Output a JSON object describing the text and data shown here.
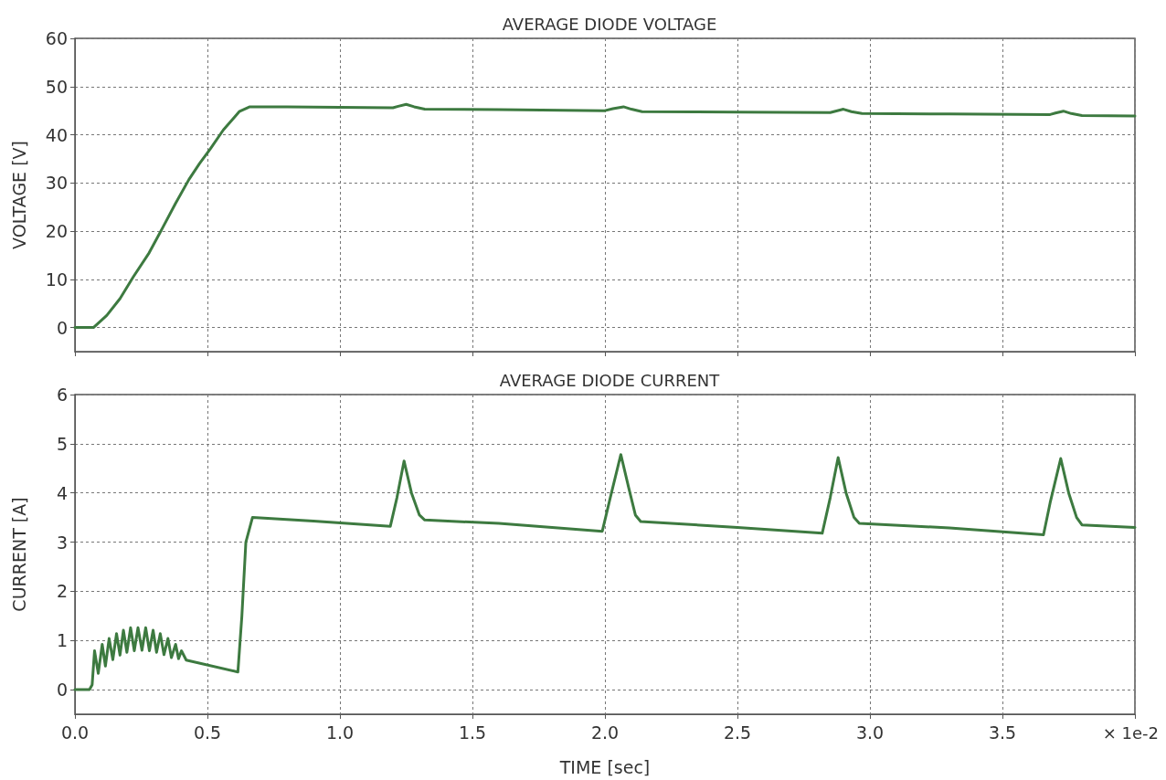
{
  "chart_data": [
    {
      "type": "line",
      "title": "AVERAGE DIODE VOLTAGE",
      "ylabel": "VOLTAGE [V]",
      "xlim": [
        0,
        4
      ],
      "xticks": [
        0,
        0.5,
        1,
        1.5,
        2,
        2.5,
        3,
        3.5,
        4
      ],
      "ylim": [
        -5,
        60
      ],
      "yticks": [
        0,
        10,
        20,
        30,
        40,
        50,
        60
      ],
      "grid": true,
      "marker": "none",
      "line_style": "solid",
      "tick_labels": "y",
      "series": [
        {
          "color": "#3d7a40",
          "x": [
            0,
            0.07,
            0.12,
            0.17,
            0.22,
            0.28,
            0.33,
            0.38,
            0.43,
            0.47,
            0.51,
            0.56,
            0.6,
            0.62,
            0.66,
            0.8,
            1.0,
            1.2,
            1.22,
            1.25,
            1.28,
            1.32,
            1.6,
            2.0,
            2.03,
            2.07,
            2.1,
            2.14,
            2.5,
            2.85,
            2.87,
            2.9,
            2.93,
            2.97,
            3.3,
            3.68,
            3.7,
            3.73,
            3.76,
            3.8,
            4.0
          ],
          "values": [
            0,
            0,
            2.5,
            6,
            10.5,
            15.5,
            20.6,
            25.8,
            30.7,
            34,
            37,
            41,
            43.5,
            44.8,
            45.8,
            45.8,
            45.7,
            45.6,
            45.9,
            46.3,
            45.8,
            45.3,
            45.2,
            45.0,
            45.4,
            45.8,
            45.3,
            44.8,
            44.7,
            44.6,
            44.9,
            45.3,
            44.8,
            44.4,
            44.3,
            44.2,
            44.5,
            44.9,
            44.4,
            44.0,
            43.9
          ]
        }
      ]
    },
    {
      "type": "line",
      "title": "AVERAGE DIODE CURRENT",
      "ylabel": "CURRENT [A]",
      "xlabel": "TIME [sec]",
      "annotations": [
        "× 1e-2"
      ],
      "xlim": [
        0,
        4
      ],
      "xticks": [
        {
          "value": 0,
          "label": "0.0"
        },
        0.5,
        {
          "value": 1,
          "label": "1.0"
        },
        1.5,
        {
          "value": 2,
          "label": "2.0"
        },
        2.5,
        {
          "value": 3,
          "label": "3.0"
        },
        3.5,
        {
          "value": 4,
          "label": null
        }
      ],
      "ylim": [
        -0.5,
        6
      ],
      "yticks": [
        0,
        1,
        2,
        3,
        4,
        5,
        6
      ],
      "grid": true,
      "marker": "none",
      "line_style": "solid",
      "series": [
        {
          "color": "#3d7a40",
          "x": [
            0,
            0.055,
            0.065,
            0.074,
            0.088,
            0.103,
            0.115,
            0.129,
            0.143,
            0.157,
            0.17,
            0.183,
            0.196,
            0.21,
            0.224,
            0.238,
            0.253,
            0.267,
            0.281,
            0.295,
            0.308,
            0.322,
            0.336,
            0.351,
            0.364,
            0.38,
            0.391,
            0.402,
            0.42,
            0.615,
            0.63,
            0.645,
            0.67,
            0.9,
            1.19,
            1.215,
            1.242,
            1.27,
            1.3,
            1.32,
            1.6,
            1.99,
            2.02,
            2.06,
            2.09,
            2.115,
            2.135,
            2.5,
            2.82,
            2.85,
            2.88,
            2.91,
            2.94,
            2.96,
            3.3,
            3.655,
            3.68,
            3.72,
            3.75,
            3.78,
            3.8,
            4.0
          ],
          "values": [
            0,
            0,
            0.1,
            0.79,
            0.33,
            0.92,
            0.48,
            1.04,
            0.61,
            1.14,
            0.7,
            1.21,
            0.76,
            1.26,
            0.79,
            1.26,
            0.8,
            1.26,
            0.79,
            1.21,
            0.76,
            1.14,
            0.71,
            1.04,
            0.65,
            0.92,
            0.63,
            0.79,
            0.6,
            0.36,
            1.5,
            3.0,
            3.5,
            3.43,
            3.32,
            3.9,
            4.65,
            4.0,
            3.55,
            3.45,
            3.38,
            3.22,
            3.9,
            4.78,
            4.1,
            3.55,
            3.42,
            3.3,
            3.18,
            3.9,
            4.72,
            4.0,
            3.5,
            3.38,
            3.29,
            3.15,
            3.8,
            4.7,
            4.0,
            3.5,
            3.35,
            3.3
          ]
        }
      ]
    }
  ]
}
